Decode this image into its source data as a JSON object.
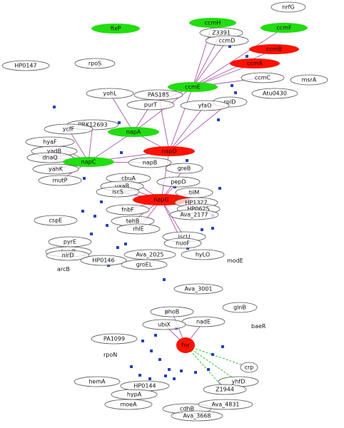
{
  "colors": {
    "background": "#ffffff",
    "outline": "#555555",
    "upregulated": "#22dd11",
    "downregulated": "#ff1100",
    "edge_regulation": "#aa55aa",
    "edge_fnr": "#22bb22",
    "edge_dot": "#2244bb"
  },
  "nodes": [
    {
      "id": "nrfG",
      "label": "nrfG",
      "status": "neutral"
    },
    {
      "id": "ccmH",
      "label": "ccmH",
      "status": "up"
    },
    {
      "id": "fixP",
      "label": "fixP",
      "status": "up"
    },
    {
      "id": "ccmF",
      "label": "ccmF",
      "status": "up"
    },
    {
      "id": "Z3391",
      "label": "Z3391",
      "status": "neutral"
    },
    {
      "id": "ccmD",
      "label": "ccmD",
      "status": "neutral"
    },
    {
      "id": "ccmB",
      "label": "ccmB",
      "status": "down"
    },
    {
      "id": "ccmA",
      "label": "ccmA",
      "status": "down"
    },
    {
      "id": "HP0147",
      "label": "HP0147",
      "status": "neutral"
    },
    {
      "id": "rpoS",
      "label": "rpoS",
      "status": "neutral"
    },
    {
      "id": "ccmC",
      "label": "ccmC",
      "status": "neutral"
    },
    {
      "id": "msrA",
      "label": "msrA",
      "status": "neutral"
    },
    {
      "id": "ccmE",
      "label": "ccmE",
      "status": "up"
    },
    {
      "id": "Atu0430",
      "label": "Atu0430",
      "status": "neutral"
    },
    {
      "id": "yohL",
      "label": "yohL",
      "status": "neutral"
    },
    {
      "id": "PAS185",
      "label": "PAS185",
      "status": "neutral"
    },
    {
      "id": "rplD",
      "label": "rplD",
      "status": "neutral"
    },
    {
      "id": "purT",
      "label": "purT",
      "status": "neutral"
    },
    {
      "id": "yfaO",
      "label": "yfaO",
      "status": "neutral"
    },
    {
      "id": "PRK12693",
      "label": "PRK12693",
      "status": "neutral"
    },
    {
      "id": "ycfF",
      "label": "ycfF",
      "status": "neutral"
    },
    {
      "id": "napA",
      "label": "napA",
      "status": "up"
    },
    {
      "id": "hyaF",
      "label": "hyaF",
      "status": "neutral"
    },
    {
      "id": "yadB",
      "label": "yadB",
      "status": "neutral"
    },
    {
      "id": "dnaQ",
      "label": "dnaQ",
      "status": "neutral"
    },
    {
      "id": "napD",
      "label": "napD",
      "status": "down"
    },
    {
      "id": "napC",
      "label": "napC",
      "status": "up"
    },
    {
      "id": "napB",
      "label": "napB",
      "status": "neutral"
    },
    {
      "id": "greB",
      "label": "greB",
      "status": "neutral"
    },
    {
      "id": "yahK",
      "label": "yahK",
      "status": "neutral"
    },
    {
      "id": "mutP",
      "label": "mutP",
      "status": "neutral"
    },
    {
      "id": "cbuA",
      "label": "cbuA",
      "status": "neutral"
    },
    {
      "id": "pepD",
      "label": "pepD",
      "status": "neutral"
    },
    {
      "id": "uxaB",
      "label": "uxaB",
      "status": "neutral"
    },
    {
      "id": "iscS",
      "label": "iscS",
      "status": "neutral"
    },
    {
      "id": "tilM",
      "label": "tilM",
      "status": "neutral"
    },
    {
      "id": "napG",
      "label": "napG",
      "status": "down"
    },
    {
      "id": "HP1327",
      "label": "HP1327",
      "status": "neutral"
    },
    {
      "id": "HP0625",
      "label": "HP0625",
      "status": "neutral"
    },
    {
      "id": "Ava_2177",
      "label": "Ava_2177",
      "status": "neutral"
    },
    {
      "id": "fnbF",
      "label": "fnbF",
      "status": "neutral"
    },
    {
      "id": "tehB",
      "label": "tehB",
      "status": "neutral"
    },
    {
      "id": "cspE",
      "label": "cspE",
      "status": "neutral"
    },
    {
      "id": "rhlE",
      "label": "rhlE",
      "status": "neutral"
    },
    {
      "id": "iscU",
      "label": "iscU",
      "status": "neutral"
    },
    {
      "id": "nuoF",
      "label": "nuoF",
      "status": "neutral"
    },
    {
      "id": "pyrE",
      "label": "pyrE",
      "status": "neutral"
    },
    {
      "id": "hypB",
      "label": "hypB",
      "status": "neutral"
    },
    {
      "id": "nirD",
      "label": "nirD",
      "status": "neutral"
    },
    {
      "id": "HP0146",
      "label": "HP0146",
      "status": "neutral"
    },
    {
      "id": "Ava_2025",
      "label": "Ava_2025",
      "status": "neutral"
    },
    {
      "id": "hyLO",
      "label": "hyLO",
      "status": "neutral"
    },
    {
      "id": "groEL",
      "label": "groEL",
      "status": "neutral"
    },
    {
      "id": "Ava_3001",
      "label": "Ava_3001",
      "status": "neutral"
    },
    {
      "id": "glnB",
      "label": "glnB",
      "status": "neutral"
    },
    {
      "id": "phoB",
      "label": "phoB",
      "status": "neutral"
    },
    {
      "id": "nadE",
      "label": "nadE",
      "status": "neutral"
    },
    {
      "id": "ubiX",
      "label": "ubiX",
      "status": "neutral"
    },
    {
      "id": "fnr",
      "label": "fnr",
      "status": "down"
    },
    {
      "id": "PA1099",
      "label": "PA1099",
      "status": "neutral"
    },
    {
      "id": "crp",
      "label": "crp",
      "status": "neutral"
    },
    {
      "id": "yhfD",
      "label": "yhfD",
      "status": "neutral"
    },
    {
      "id": "Z1944",
      "label": "Z1944",
      "status": "neutral"
    },
    {
      "id": "hemA",
      "label": "hemA",
      "status": "neutral"
    },
    {
      "id": "HP0144",
      "label": "HP0144",
      "status": "neutral"
    },
    {
      "id": "hypA",
      "label": "hypA",
      "status": "neutral"
    },
    {
      "id": "moeA",
      "label": "moeA",
      "status": "neutral"
    },
    {
      "id": "cdhB",
      "label": "cdhB",
      "status": "neutral"
    },
    {
      "id": "Ava_4831",
      "label": "Ava_4831",
      "status": "neutral"
    },
    {
      "id": "Ava_3668",
      "label": "Ava_3668",
      "status": "neutral"
    }
  ],
  "free_labels": [
    {
      "id": "modE",
      "label": "modE"
    },
    {
      "id": "arcB",
      "label": "arcB"
    },
    {
      "id": "baeR",
      "label": "baeR"
    },
    {
      "id": "rpoN",
      "label": "rpoN"
    }
  ],
  "edges": [
    {
      "from": "ccmH",
      "to": "ccmE",
      "type": "regulation"
    },
    {
      "from": "Z3391",
      "to": "ccmE",
      "type": "regulation"
    },
    {
      "from": "ccmD",
      "to": "ccmE",
      "type": "regulation"
    },
    {
      "from": "ccmB",
      "to": "ccmE",
      "type": "regulation"
    },
    {
      "from": "ccmA",
      "to": "ccmE",
      "type": "regulation"
    },
    {
      "from": "ccmC",
      "to": "ccmE",
      "type": "regulation"
    },
    {
      "from": "ccmF",
      "to": "ccmE",
      "type": "regulation"
    },
    {
      "from": "ccmE",
      "to": "purT",
      "type": "regulation"
    },
    {
      "from": "ccmE",
      "to": "PAS185",
      "type": "regulation"
    },
    {
      "from": "ccmE",
      "to": "napD",
      "type": "regulation"
    },
    {
      "from": "ccmE",
      "to": "napA",
      "type": "regulation"
    },
    {
      "from": "purT",
      "to": "napA",
      "type": "regulation"
    },
    {
      "from": "yohL",
      "to": "napA",
      "type": "regulation"
    },
    {
      "from": "PAS185",
      "to": "napD",
      "type": "regulation"
    },
    {
      "from": "yfaO",
      "to": "napD",
      "type": "regulation"
    },
    {
      "from": "rplD",
      "to": "napD",
      "type": "regulation"
    },
    {
      "from": "napA",
      "to": "napC",
      "type": "regulation"
    },
    {
      "from": "napA",
      "to": "napD",
      "type": "regulation"
    },
    {
      "from": "PRK12693",
      "to": "napC",
      "type": "regulation"
    },
    {
      "from": "ycfF",
      "to": "napC",
      "type": "regulation"
    },
    {
      "from": "hyaF",
      "to": "napC",
      "type": "regulation"
    },
    {
      "from": "yadB",
      "to": "napC",
      "type": "regulation"
    },
    {
      "from": "dnaQ",
      "to": "napC",
      "type": "regulation"
    },
    {
      "from": "yahK",
      "to": "napC",
      "type": "regulation"
    },
    {
      "from": "mutP",
      "to": "napC",
      "type": "regulation"
    },
    {
      "from": "napC",
      "to": "napD",
      "type": "regulation"
    },
    {
      "from": "napC",
      "to": "napB",
      "type": "regulation"
    },
    {
      "from": "napD",
      "to": "napG",
      "type": "regulation"
    },
    {
      "from": "greB",
      "to": "napG",
      "type": "regulation"
    },
    {
      "from": "cbuA",
      "to": "napG",
      "type": "regulation"
    },
    {
      "from": "uxaB",
      "to": "napG",
      "type": "regulation"
    },
    {
      "from": "iscS",
      "to": "napG",
      "type": "regulation"
    },
    {
      "from": "pepD",
      "to": "napG",
      "type": "regulation"
    },
    {
      "from": "tilM",
      "to": "napG",
      "type": "regulation"
    },
    {
      "from": "HP1327",
      "to": "napG",
      "type": "regulation"
    },
    {
      "from": "HP0625",
      "to": "napG",
      "type": "regulation"
    },
    {
      "from": "fnbF",
      "to": "napG",
      "type": "regulation"
    },
    {
      "from": "tehB",
      "to": "napG",
      "type": "regulation"
    },
    {
      "from": "rhlE",
      "to": "napG",
      "type": "regulation"
    },
    {
      "from": "iscU",
      "to": "napG",
      "type": "regulation"
    },
    {
      "from": "nuoF",
      "to": "napG",
      "type": "regulation"
    },
    {
      "from": "fnr",
      "to": "crp",
      "type": "fnr"
    },
    {
      "from": "fnr",
      "to": "yhfD",
      "type": "fnr"
    },
    {
      "from": "fnr",
      "to": "Z1944",
      "type": "fnr"
    },
    {
      "from": "phoB",
      "to": "fnr",
      "type": "regulation"
    },
    {
      "from": "ubiX",
      "to": "fnr",
      "type": "regulation"
    },
    {
      "from": "nadE",
      "to": "fnr",
      "type": "regulation"
    }
  ]
}
